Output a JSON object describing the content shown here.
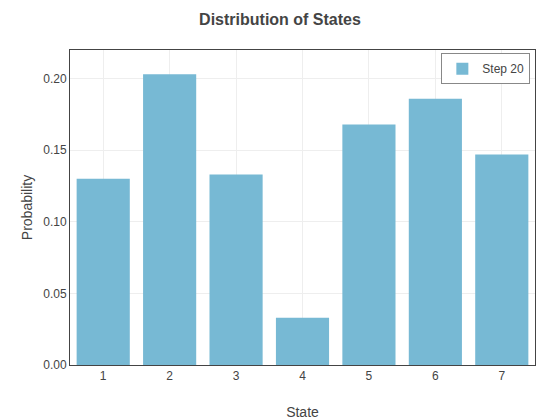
{
  "chart_data": {
    "type": "bar",
    "title": "Distribution of States",
    "xlabel": "State",
    "ylabel": "Probability",
    "categories": [
      "1",
      "2",
      "3",
      "4",
      "5",
      "6",
      "7"
    ],
    "series": [
      {
        "name": "Step 20",
        "color": "#77b9d4",
        "values": [
          0.13,
          0.203,
          0.133,
          0.033,
          0.168,
          0.186,
          0.147
        ]
      }
    ],
    "ylim": [
      0,
      0.22
    ],
    "yticks": [
      {
        "value": 0,
        "label": "0.00"
      },
      0.05,
      {
        "value": 0.1,
        "label": "0.10"
      },
      0.15,
      {
        "value": 0.2,
        "label": "0.20"
      }
    ],
    "grid": true,
    "legend": "upper right"
  }
}
